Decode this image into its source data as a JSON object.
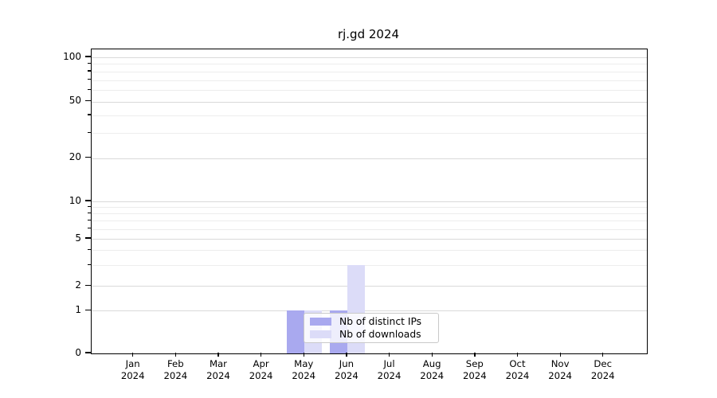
{
  "chart_data": {
    "type": "bar",
    "title": "rj.gd 2024",
    "x_categories": [
      "Jan",
      "Feb",
      "Mar",
      "Apr",
      "May",
      "Jun",
      "Jul",
      "Aug",
      "Sep",
      "Oct",
      "Nov",
      "Dec"
    ],
    "x_year": "2024",
    "series": [
      {
        "name": "Nb of distinct IPs",
        "color": "#a9a9ef",
        "values": [
          0,
          0,
          0,
          0,
          1,
          1,
          0,
          0,
          0,
          0,
          0,
          0
        ]
      },
      {
        "name": "Nb of downloads",
        "color": "#dcdcf8",
        "values": [
          0,
          0,
          0,
          0,
          1,
          3,
          0,
          0,
          0,
          0,
          0,
          0
        ]
      }
    ],
    "y_ticks": [
      0,
      1,
      2,
      5,
      10,
      20,
      50,
      100
    ],
    "y_minor_lines": [
      3,
      4,
      6,
      7,
      8,
      9,
      30,
      40,
      60,
      70,
      80,
      90
    ],
    "y_scale": "logarithmic above 1, linear 0-1",
    "ylim": [
      0,
      115
    ],
    "grid": true,
    "legend_position": "lower center"
  },
  "colors": {
    "grid_major": "#d9d9d9",
    "grid_minor": "#ededed",
    "axis": "#000000"
  }
}
